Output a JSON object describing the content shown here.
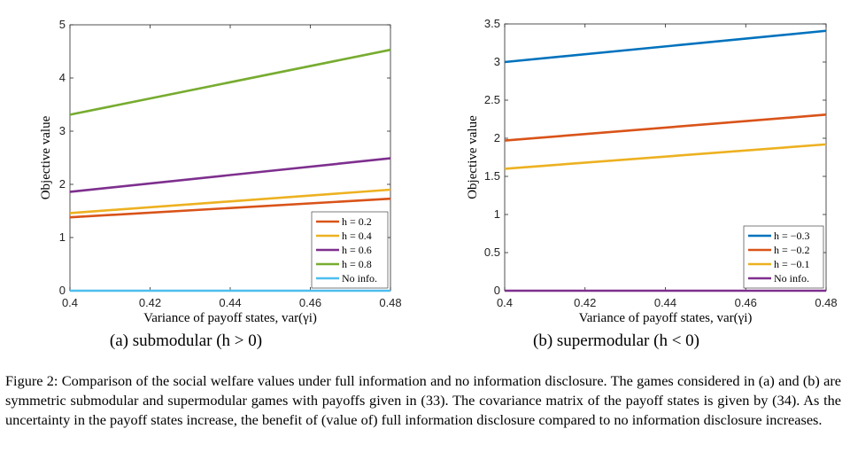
{
  "charts": [
    {
      "subcaption": "(a) submodular (h > 0)",
      "chart_data": {
        "type": "line",
        "xlabel": "Variance of payoff states, var(γi)",
        "ylabel": "Objective value",
        "xlim": [
          0.4,
          0.48
        ],
        "ylim": [
          0,
          5
        ],
        "xticks": [
          "0.4",
          "0.42",
          "0.44",
          "0.46",
          "0.48"
        ],
        "yticks": [
          "0",
          "1",
          "2",
          "3",
          "4",
          "5"
        ],
        "legend_position": "bottom-right",
        "series": [
          {
            "name": "h = 0.2",
            "color": "#d95319",
            "x": [
              0.4,
              0.48
            ],
            "values": [
              1.38,
              1.73
            ]
          },
          {
            "name": "h = 0.4",
            "color": "#edb120",
            "x": [
              0.4,
              0.48
            ],
            "values": [
              1.46,
              1.9
            ]
          },
          {
            "name": "h = 0.6",
            "color": "#7e2f8e",
            "x": [
              0.4,
              0.48
            ],
            "values": [
              1.86,
              2.49
            ]
          },
          {
            "name": "h = 0.8",
            "color": "#77ac30",
            "x": [
              0.4,
              0.48
            ],
            "values": [
              3.31,
              4.53
            ]
          },
          {
            "name": "No info.",
            "color": "#4dbeee",
            "x": [
              0.4,
              0.48
            ],
            "values": [
              0,
              0
            ]
          }
        ]
      }
    },
    {
      "subcaption": "(b) supermodular (h < 0)",
      "chart_data": {
        "type": "line",
        "xlabel": "Variance of payoff states, var(γi)",
        "ylabel": "Objective value",
        "xlim": [
          0.4,
          0.48
        ],
        "ylim": [
          0,
          3.5
        ],
        "xticks": [
          "0.4",
          "0.42",
          "0.44",
          "0.46",
          "0.48"
        ],
        "yticks": [
          "0",
          "0.5",
          "1",
          "1.5",
          "2",
          "2.5",
          "3",
          "3.5"
        ],
        "legend_position": "bottom-right",
        "series": [
          {
            "name": "h = −0.3",
            "color": "#0072bd",
            "x": [
              0.4,
              0.48
            ],
            "values": [
              3.0,
              3.41
            ]
          },
          {
            "name": "h = −0.2",
            "color": "#d95319",
            "x": [
              0.4,
              0.48
            ],
            "values": [
              1.97,
              2.31
            ]
          },
          {
            "name": "h = −0.1",
            "color": "#edb120",
            "x": [
              0.4,
              0.48
            ],
            "values": [
              1.6,
              1.92
            ]
          },
          {
            "name": "No info.",
            "color": "#7e2f8e",
            "x": [
              0.4,
              0.48
            ],
            "values": [
              0,
              0
            ]
          }
        ]
      }
    }
  ],
  "caption": "Figure 2: Comparison of the social welfare values under full information and no information disclosure. The games considered in (a) and (b) are symmetric submodular and supermodular games with payoffs given in (33). The covariance matrix of the payoff states is given by (34). As the uncertainty in the payoff states increase, the benefit of (value of) full information disclosure compared to no information disclosure increases."
}
